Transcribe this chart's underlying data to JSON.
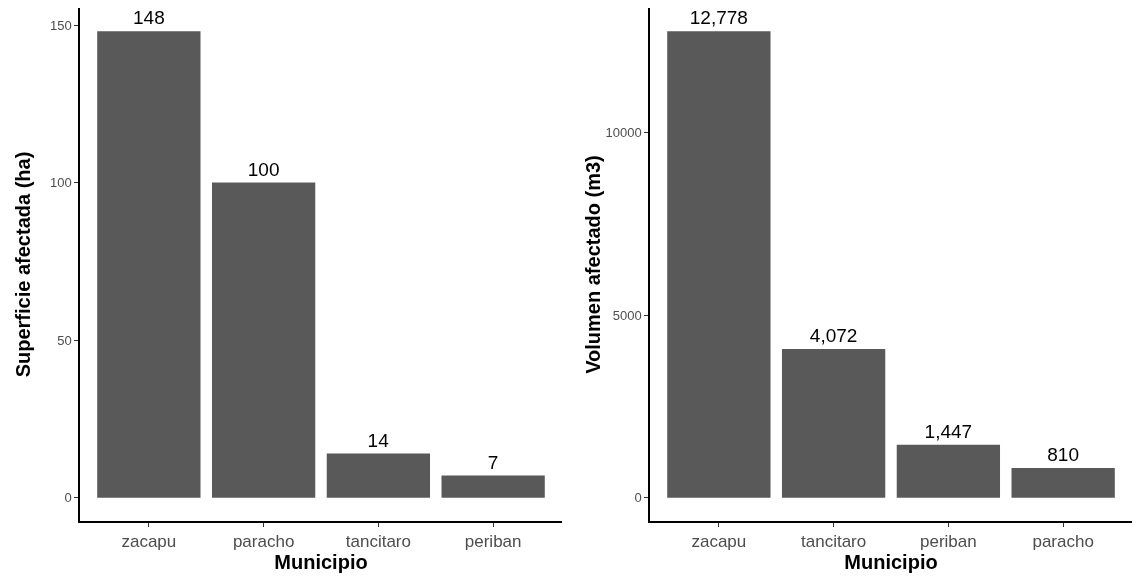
{
  "chart_data": [
    {
      "type": "bar",
      "xlabel": "Municipio",
      "ylabel": "Superficie afectada (ha)",
      "categories": [
        "zacapu",
        "paracho",
        "tancitaro",
        "periban"
      ],
      "values": [
        148,
        100,
        14,
        7
      ],
      "color": "#595959",
      "ylim": [
        -7.4,
        155.4
      ],
      "yticks": [
        0,
        50,
        100,
        150
      ],
      "data_labels": true,
      "grid": false
    },
    {
      "type": "bar",
      "xlabel": "Municipio",
      "ylabel": "Volumen afectado (m3)",
      "categories": [
        "zacapu",
        "tancitaro",
        "periban",
        "paracho"
      ],
      "values": [
        12778,
        4072,
        1447,
        810
      ],
      "value_labels": [
        "12,778",
        "4,072",
        "1,447",
        "810"
      ],
      "color": "#595959",
      "ylim": [
        -639,
        13417
      ],
      "yticks": [
        0,
        5000,
        10000
      ],
      "grid": false
    }
  ]
}
